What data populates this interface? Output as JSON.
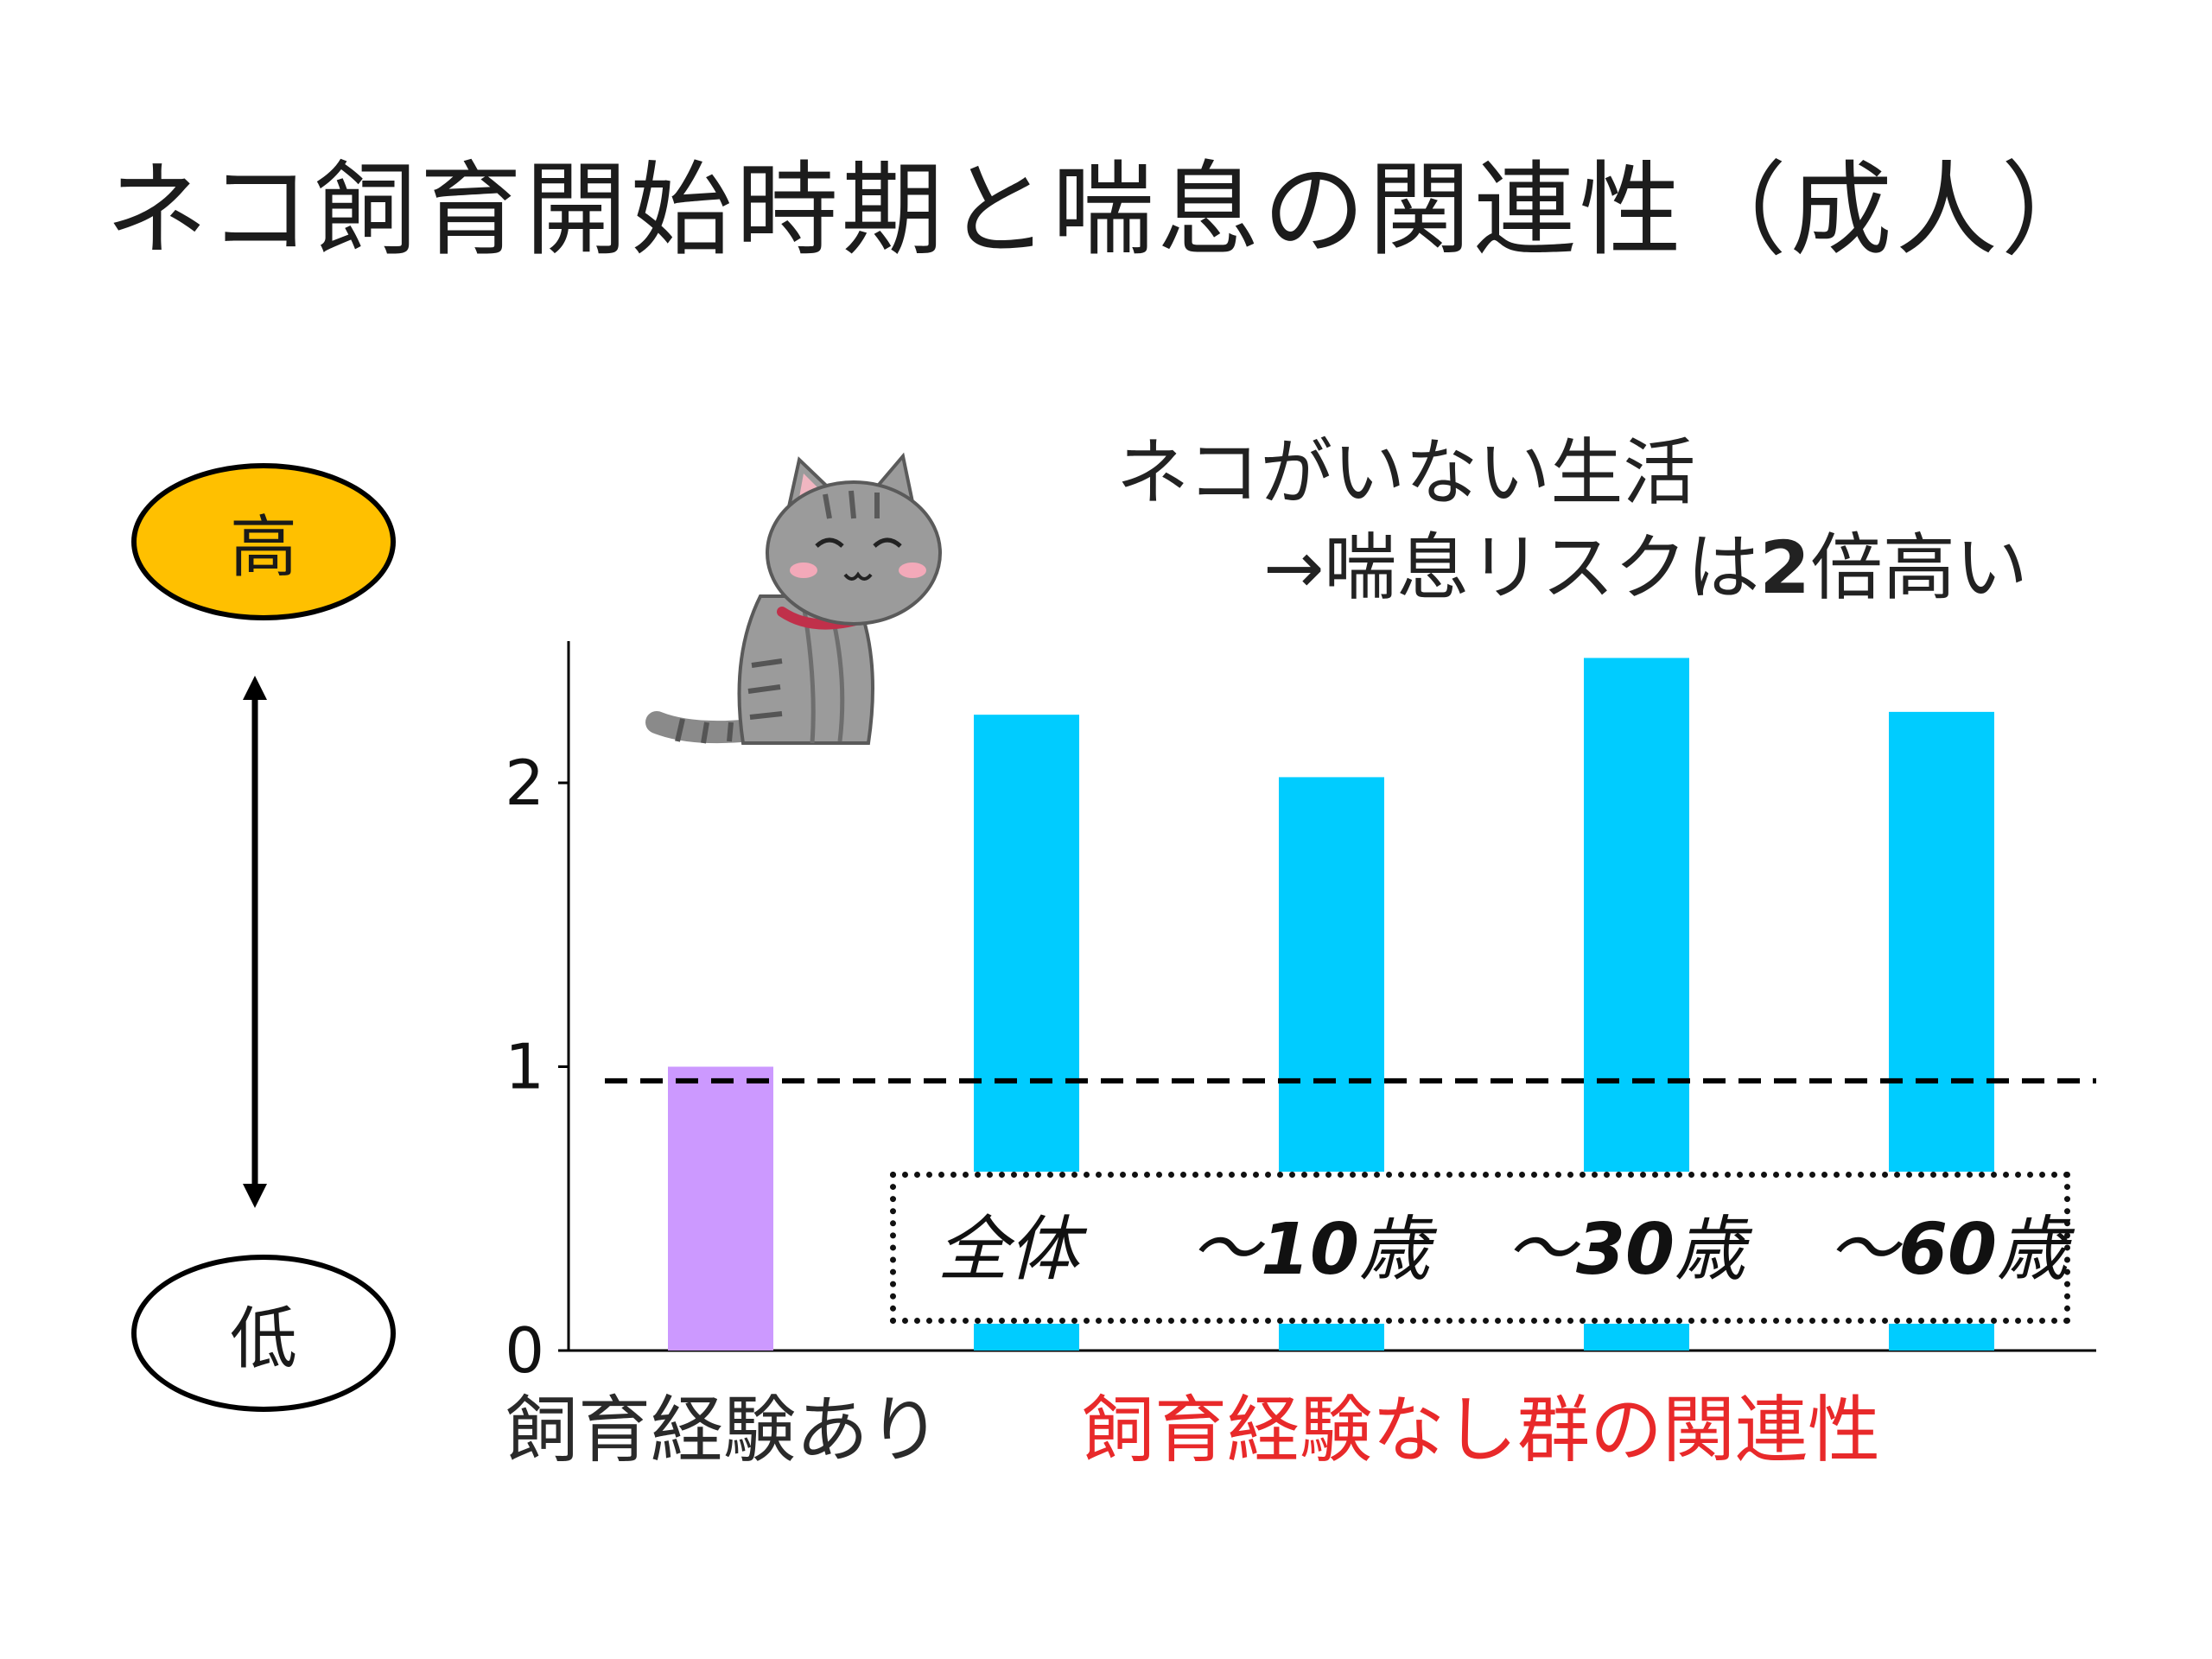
{
  "title": "ネコ飼育開始時期と喘息の関連性（成人）",
  "scale": {
    "high_label": "高",
    "low_label": "低",
    "high_color": "#ffc000"
  },
  "annotation": {
    "line1": "ネコがいない生活",
    "line2_prefix": "→喘息リスクは",
    "line2_number": "2",
    "line2_suffix": "倍高い"
  },
  "group_labels": {
    "with_experience": "飼育経験あり",
    "without_experience": "飼育経験なし群の関連性",
    "without_experience_color": "#e8292a"
  },
  "legend": {
    "items": [
      {
        "text": "全体",
        "number": ""
      },
      {
        "text_prefix": "～",
        "number": "10",
        "text_suffix": "歳"
      },
      {
        "text_prefix": "～",
        "number": "30",
        "text_suffix": "歳"
      },
      {
        "text_prefix": "～",
        "number": "60",
        "text_suffix": "歳"
      }
    ]
  },
  "icons": {
    "cat": "cat-illustration-icon",
    "arrow": "double-vertical-arrow-icon"
  },
  "chart_data": {
    "type": "bar",
    "categories": [
      "飼育経験あり",
      "全体",
      "～10歳",
      "～30歳",
      "～60歳"
    ],
    "values": [
      1.0,
      2.24,
      2.02,
      2.44,
      2.25
    ],
    "colors": [
      "#cc99ff",
      "#00ccff",
      "#00ccff",
      "#00ccff",
      "#00ccff"
    ],
    "yticks": [
      "0",
      "1",
      "2"
    ],
    "ylim": [
      0,
      2.5
    ],
    "reference_line": 0.95,
    "grid": false
  }
}
